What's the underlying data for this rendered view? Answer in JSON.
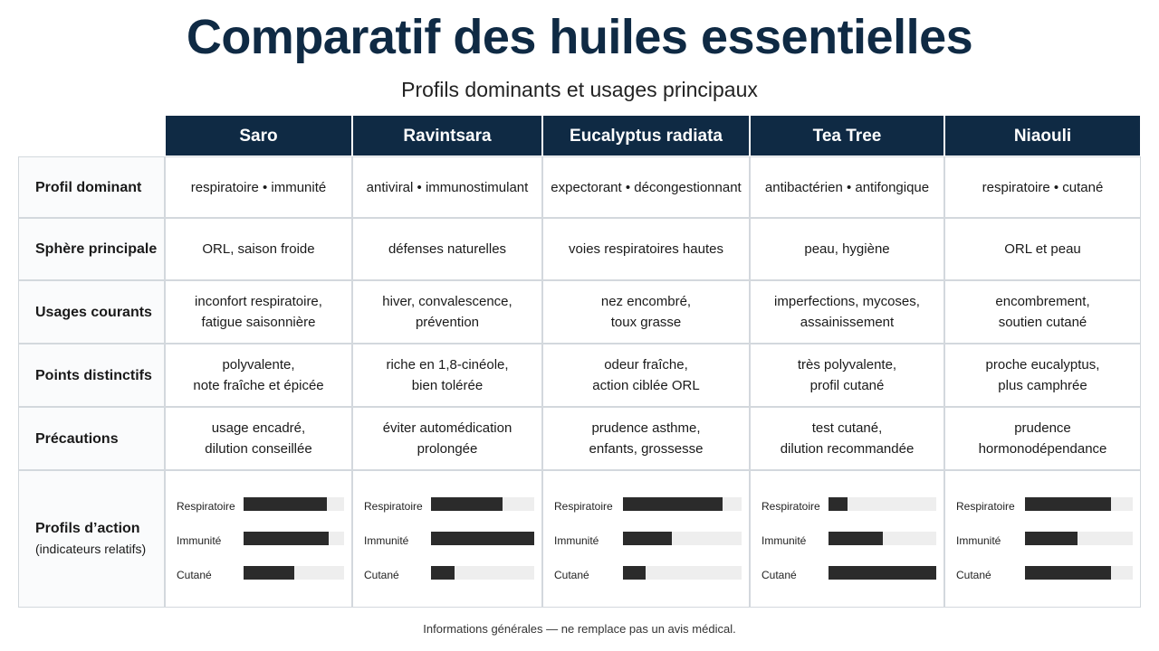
{
  "header": {
    "title": "Comparatif des huiles essentielles",
    "subtitle": "Profils dominants et usages principaux"
  },
  "table": {
    "columns": [
      "Saro",
      "Ravintsara",
      "Eucalyptus radiata",
      "Tea Tree",
      "Niaouli"
    ],
    "rows": [
      {
        "label": "Profil dominant",
        "cells": [
          "respiratoire • immunité",
          "antiviral • immunostimulant",
          "expectorant • décongestionnant",
          "antibactérien • antifongique",
          "respiratoire • cutané"
        ]
      },
      {
        "label": "Sphère principale",
        "cells": [
          "ORL, saison froide",
          "défenses naturelles",
          "voies respiratoires hautes",
          "peau, hygiène",
          "ORL et peau"
        ]
      },
      {
        "label": "Usages courants",
        "cells": [
          "inconfort respiratoire,\nfatigue saisonnière",
          "hiver, convalescence,\nprévention",
          "nez encombré,\ntoux grasse",
          "imperfections, mycoses,\nassainissement",
          "encombrement,\nsoutien cutané"
        ]
      },
      {
        "label": "Points distinctifs",
        "cells": [
          "polyvalente,\nnote fraîche et épicée",
          "riche en 1,8-cinéole,\nbien tolérée",
          "odeur fraîche,\naction ciblée ORL",
          "très polyvalente,\nprofil cutané",
          "proche eucalyptus,\nplus camphrée"
        ]
      },
      {
        "label": "Précautions",
        "cells": [
          "usage encadré,\ndilution conseillée",
          "éviter automédication\nprolongée",
          "prudence asthme,\nenfants, grossesse",
          "test cutané,\ndilution recommandée",
          "prudence\nhormonodépendance"
        ]
      }
    ]
  },
  "profiles": {
    "label": "Profils d’action",
    "note": "(indicateurs relatifs)",
    "indicators": [
      "Respiratoire",
      "Immunité",
      "Cutané"
    ],
    "xlim": [
      0,
      100
    ],
    "color": "#2b2b2b",
    "series": [
      {
        "values": [
          83,
          85,
          50
        ]
      },
      {
        "values": [
          69,
          100,
          23
        ]
      },
      {
        "values": [
          84,
          41,
          19
        ]
      },
      {
        "values": [
          18,
          50,
          100
        ]
      },
      {
        "values": [
          80,
          49,
          80
        ]
      }
    ]
  },
  "footer": "Informations générales — ne remplace pas un avis médical."
}
